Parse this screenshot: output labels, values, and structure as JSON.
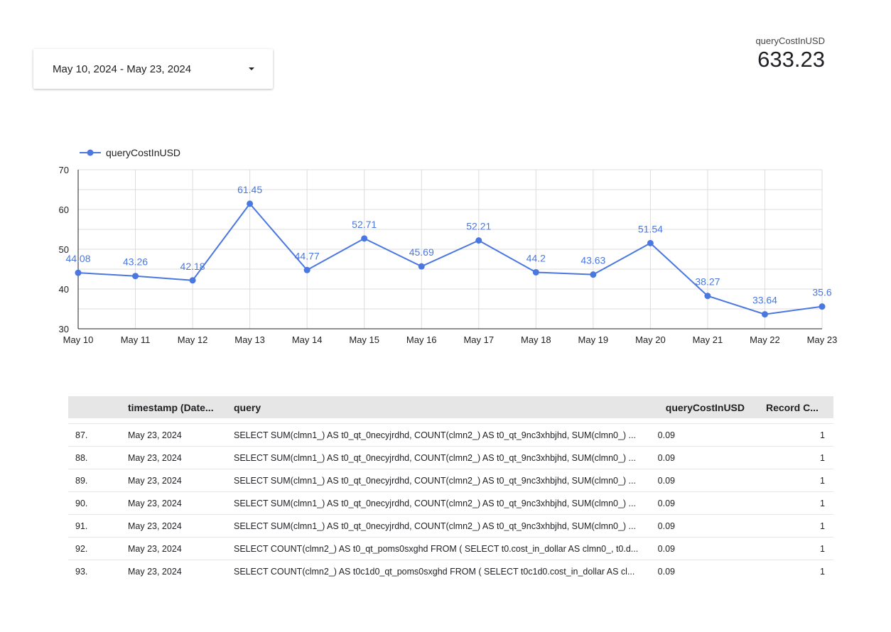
{
  "date_range": {
    "label": "May 10, 2024 - May 23, 2024"
  },
  "scorecard": {
    "label": "queryCostInUSD",
    "value": "633.23"
  },
  "colors": {
    "series": "#4a77e0",
    "grid": "#dcdcdc",
    "axis": "#202124"
  },
  "chart_data": {
    "type": "line",
    "x": [
      "May 10",
      "May 11",
      "May 12",
      "May 13",
      "May 14",
      "May 15",
      "May 16",
      "May 17",
      "May 18",
      "May 19",
      "May 20",
      "May 21",
      "May 22",
      "May 23"
    ],
    "series": [
      {
        "name": "queryCostInUSD",
        "values": [
          44.08,
          43.26,
          42.18,
          61.45,
          44.77,
          52.71,
          45.69,
          52.21,
          44.2,
          43.63,
          51.54,
          38.27,
          33.64,
          35.6
        ],
        "labels": [
          "44.08",
          "43.26",
          "42.18",
          "61.45",
          "44.77",
          "52.71",
          "45.69",
          "52.21",
          "44.2",
          "43.63",
          "51.54",
          "38.27",
          "33.64",
          "35.6"
        ]
      }
    ],
    "ylim": [
      30,
      70
    ],
    "yticks": [
      "30",
      "40",
      "50",
      "60",
      "70"
    ],
    "legend": "top-left",
    "grid": true
  },
  "table": {
    "headers": {
      "timestamp": "timestamp (Date...",
      "query": "query",
      "cost": "queryCostInUSD",
      "record": "Record C..."
    },
    "rows": [
      {
        "idx": "87.",
        "timestamp": "May 23, 2024",
        "query": "SELECT SUM(clmn1_) AS t0_qt_0necyjrdhd, COUNT(clmn2_) AS t0_qt_9nc3xhbjhd, SUM(clmn0_) ...",
        "cost": "0.09",
        "record": "1"
      },
      {
        "idx": "88.",
        "timestamp": "May 23, 2024",
        "query": "SELECT SUM(clmn1_) AS t0_qt_0necyjrdhd, COUNT(clmn2_) AS t0_qt_9nc3xhbjhd, SUM(clmn0_) ...",
        "cost": "0.09",
        "record": "1"
      },
      {
        "idx": "89.",
        "timestamp": "May 23, 2024",
        "query": "SELECT SUM(clmn1_) AS t0_qt_0necyjrdhd, COUNT(clmn2_) AS t0_qt_9nc3xhbjhd, SUM(clmn0_) ...",
        "cost": "0.09",
        "record": "1"
      },
      {
        "idx": "90.",
        "timestamp": "May 23, 2024",
        "query": "SELECT SUM(clmn1_) AS t0_qt_0necyjrdhd, COUNT(clmn2_) AS t0_qt_9nc3xhbjhd, SUM(clmn0_) ...",
        "cost": "0.09",
        "record": "1"
      },
      {
        "idx": "91.",
        "timestamp": "May 23, 2024",
        "query": "SELECT SUM(clmn1_) AS t0_qt_0necyjrdhd, COUNT(clmn2_) AS t0_qt_9nc3xhbjhd, SUM(clmn0_) ...",
        "cost": "0.09",
        "record": "1"
      },
      {
        "idx": "92.",
        "timestamp": "May 23, 2024",
        "query": "SELECT COUNT(clmn2_) AS t0_qt_poms0sxghd FROM ( SELECT t0.cost_in_dollar AS clmn0_, t0.d...",
        "cost": "0.09",
        "record": "1"
      },
      {
        "idx": "93.",
        "timestamp": "May 23, 2024",
        "query": "SELECT COUNT(clmn2_) AS t0c1d0_qt_poms0sxghd FROM ( SELECT t0c1d0.cost_in_dollar AS cl...",
        "cost": "0.09",
        "record": "1"
      }
    ]
  }
}
